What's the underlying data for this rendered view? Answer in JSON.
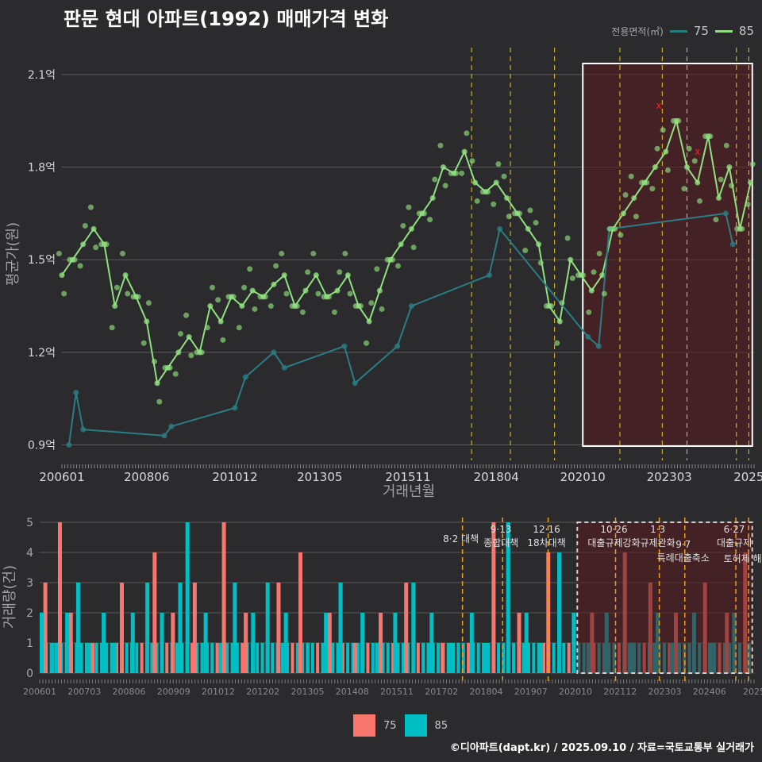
{
  "title": "판문 현대 아파트(1992) 매매가격 변화",
  "legend": {
    "title": "전용면적(㎡)",
    "items": [
      {
        "label": "75",
        "color": "#2a7d84"
      },
      {
        "label": "85",
        "color": "#90e080"
      }
    ]
  },
  "bottom_legend": {
    "items": [
      {
        "label": "75",
        "color": "#f8766d"
      },
      {
        "label": "85",
        "color": "#00bfc4"
      }
    ]
  },
  "credit": "©디아파트(dapt.kr) / 2025.09.10 / 자료=국토교통부 실거래가",
  "chart_data": [
    {
      "type": "line",
      "xlabel": "거래년월",
      "ylabel": "평균가(원)",
      "x_ticks": [
        "200601",
        "200806",
        "201012",
        "201305",
        "201511",
        "201804",
        "202010",
        "202303",
        "2025"
      ],
      "y_ticks": [
        "0.9억",
        "1.2억",
        "1.5억",
        "1.8억",
        "2.1억"
      ],
      "ylim": [
        0.85,
        2.2
      ],
      "xlim": [
        2006.0,
        2025.6
      ],
      "grid": true,
      "highlight_range": [
        2020.75,
        2025.55
      ],
      "event_lines": [
        2017.6,
        2018.7,
        2019.95,
        2021.8,
        2023.0,
        2023.7,
        2025.1,
        2025.45
      ],
      "series": [
        {
          "name": "85",
          "color": "#90e080",
          "x": [
            2006.0,
            2006.3,
            2006.6,
            2006.9,
            2007.2,
            2007.5,
            2007.8,
            2008.1,
            2008.4,
            2008.7,
            2009.0,
            2009.3,
            2009.6,
            2009.9,
            2010.2,
            2010.5,
            2010.8,
            2011.1,
            2011.4,
            2011.7,
            2012.0,
            2012.3,
            2012.6,
            2012.9,
            2013.2,
            2013.5,
            2013.8,
            2014.1,
            2014.4,
            2014.7,
            2015.0,
            2015.3,
            2015.6,
            2015.9,
            2016.2,
            2016.5,
            2016.8,
            2017.1,
            2017.4,
            2017.7,
            2018.0,
            2018.3,
            2018.6,
            2018.9,
            2019.2,
            2019.5,
            2019.8,
            2020.1,
            2020.4,
            2020.7,
            2021.0,
            2021.3,
            2021.6,
            2021.9,
            2022.2,
            2022.5,
            2022.8,
            2023.1,
            2023.4,
            2023.7,
            2024.0,
            2024.3,
            2024.6,
            2024.9,
            2025.2,
            2025.5
          ],
          "y": [
            1.45,
            1.5,
            1.55,
            1.6,
            1.55,
            1.35,
            1.45,
            1.38,
            1.3,
            1.1,
            1.15,
            1.2,
            1.25,
            1.2,
            1.35,
            1.3,
            1.38,
            1.35,
            1.4,
            1.38,
            1.42,
            1.45,
            1.35,
            1.4,
            1.45,
            1.38,
            1.4,
            1.45,
            1.35,
            1.3,
            1.4,
            1.5,
            1.55,
            1.6,
            1.65,
            1.7,
            1.8,
            1.78,
            1.85,
            1.75,
            1.72,
            1.75,
            1.7,
            1.65,
            1.6,
            1.55,
            1.35,
            1.3,
            1.5,
            1.45,
            1.4,
            1.45,
            1.6,
            1.65,
            1.7,
            1.75,
            1.8,
            1.85,
            1.95,
            1.8,
            1.75,
            1.9,
            1.7,
            1.8,
            1.6,
            1.75
          ]
        },
        {
          "name": "75",
          "color": "#2a7d84",
          "x": [
            2006.2,
            2006.4,
            2006.6,
            2008.9,
            2009.1,
            2010.9,
            2011.2,
            2012.0,
            2012.3,
            2014.0,
            2014.3,
            2015.5,
            2015.9,
            2018.1,
            2018.4,
            2020.9,
            2021.2,
            2021.5,
            2024.8,
            2025.0
          ],
          "y": [
            0.9,
            1.07,
            0.95,
            0.93,
            0.96,
            1.02,
            1.12,
            1.2,
            1.15,
            1.22,
            1.1,
            1.22,
            1.35,
            1.45,
            1.6,
            1.25,
            1.22,
            1.6,
            1.65,
            1.55
          ]
        }
      ],
      "markers": [
        {
          "x": 2022.9,
          "y": 2.0,
          "symbol": "x",
          "color": "#ff2020"
        },
        {
          "x": 2024.0,
          "y": 1.85,
          "symbol": "x",
          "color": "#ff2020"
        }
      ]
    },
    {
      "type": "bar",
      "ylabel": "거래량(건)",
      "y_ticks": [
        "0",
        "1",
        "2",
        "3",
        "4",
        "5"
      ],
      "ylim": [
        0,
        5
      ],
      "x_ticks": [
        "200601",
        "200703",
        "200806",
        "200909",
        "201012",
        "201202",
        "201305",
        "201408",
        "201511",
        "201702",
        "201804",
        "201907",
        "202010",
        "202112",
        "202303",
        "202406",
        "2025"
      ],
      "highlight_range": [
        2020.75,
        2025.55
      ],
      "events": [
        {
          "x": 2017.6,
          "label": [
            "8·2 대책"
          ]
        },
        {
          "x": 2018.7,
          "label": [
            "9·13",
            "종합대책"
          ]
        },
        {
          "x": 2019.95,
          "label": [
            "12·16",
            "18차대책"
          ]
        },
        {
          "x": 2021.8,
          "label": [
            "10·26",
            "대출규제강화"
          ]
        },
        {
          "x": 2023.0,
          "label": [
            "1·3",
            "규제완화"
          ]
        },
        {
          "x": 2023.7,
          "label": [
            "9·7",
            "특례대출축소"
          ]
        },
        {
          "x": 2025.1,
          "label": [
            "6·27",
            "대출규제"
          ]
        },
        {
          "x": 2025.45,
          "label": [
            "토허제 해제"
          ]
        }
      ],
      "series": [
        {
          "name": "75",
          "color": "#f8766d",
          "x": [
            2006.1,
            2006.5,
            2006.8,
            2007.4,
            2008.2,
            2009.1,
            2009.6,
            2010.2,
            2011.0,
            2011.6,
            2012.5,
            2013.1,
            2013.9,
            2014.6,
            2015.3,
            2016.0,
            2017.0,
            2018.4,
            2019.1,
            2019.9,
            2021.1,
            2022.0,
            2022.7,
            2023.4,
            2024.2,
            2024.8,
            2025.3
          ],
          "values": [
            3,
            5,
            2,
            1,
            3,
            4,
            2,
            3,
            5,
            2,
            3,
            4,
            2,
            1,
            2,
            3,
            1,
            5,
            2,
            4,
            2,
            4,
            3,
            2,
            3,
            2,
            4
          ]
        },
        {
          "name": "85",
          "color": "#00bfc4",
          "x": [
            2006.0,
            2006.3,
            2006.7,
            2007.0,
            2007.3,
            2007.7,
            2008.0,
            2008.5,
            2008.9,
            2009.3,
            2009.8,
            2010.0,
            2010.5,
            2010.9,
            2011.3,
            2011.8,
            2012.2,
            2012.7,
            2013.3,
            2013.8,
            2014.2,
            2014.8,
            2015.2,
            2015.7,
            2016.2,
            2016.7,
            2017.2,
            2017.8,
            2018.2,
            2018.8,
            2019.3,
            2019.7,
            2020.2,
            2020.6,
            2021.0,
            2021.5,
            2022.2,
            2022.9,
            2023.3,
            2023.9,
            2024.4,
            2025.0,
            2025.4
          ],
          "values": [
            2,
            1,
            2,
            3,
            1,
            2,
            1,
            2,
            3,
            2,
            3,
            5,
            2,
            1,
            3,
            2,
            3,
            2,
            1,
            2,
            3,
            2,
            1,
            2,
            3,
            2,
            1,
            2,
            1,
            5,
            2,
            1,
            4,
            2,
            1,
            2,
            1,
            2,
            1,
            2,
            1,
            2,
            1
          ]
        }
      ]
    }
  ]
}
